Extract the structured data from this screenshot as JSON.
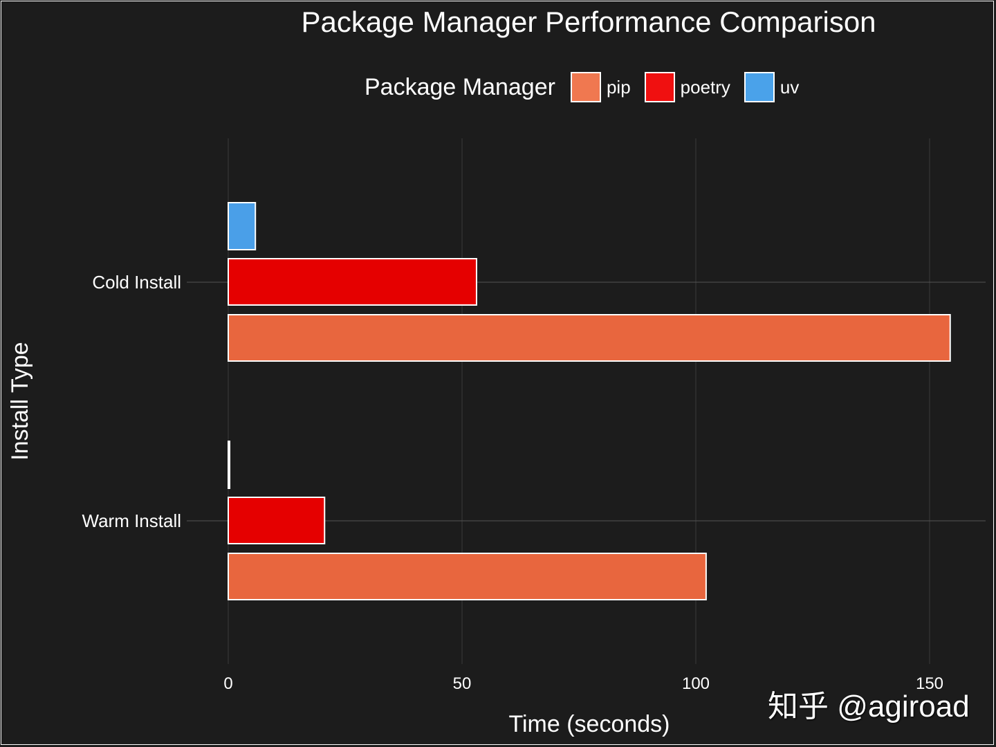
{
  "chart_data": {
    "type": "bar",
    "orientation": "horizontal",
    "title": "Package Manager Performance Comparison",
    "xlabel": "Time (seconds)",
    "ylabel": "Install Type",
    "categories": [
      "Cold Install",
      "Warm Install"
    ],
    "series": [
      {
        "name": "pip",
        "values": [
          154.4,
          102.2
        ],
        "color": "#e8663e"
      },
      {
        "name": "poetry",
        "values": [
          53.1,
          20.6
        ],
        "color": "#e50000"
      },
      {
        "name": "uv",
        "values": [
          5.8,
          0.3
        ],
        "color": "#4a9fe8"
      }
    ],
    "xlim": [
      0,
      162
    ],
    "xticks": [
      "0",
      "50",
      "100",
      "150"
    ],
    "xtick_values": [
      0,
      50,
      100,
      150
    ],
    "legend_title": "Package Manager",
    "legend_position": "top",
    "grid": true,
    "background": "#1c1c1c"
  },
  "watermark": "知乎 @agiroad"
}
